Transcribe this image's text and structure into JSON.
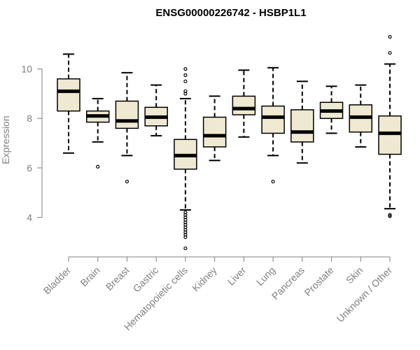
{
  "chart_data": {
    "type": "boxplot",
    "title": "ENSG00000226742 - HSBP1L1",
    "ylabel": "Expression",
    "xlabel": "",
    "ylim": [
      2.6,
      11.6
    ],
    "yticks": [
      4,
      6,
      8,
      10
    ],
    "box_fill": "#efe9d2",
    "categories": [
      "Bladder",
      "Brain",
      "Breast",
      "Gastric",
      "Hematopoietic cells",
      "Kidney",
      "Liver",
      "Lung",
      "Pancreas",
      "Prostate",
      "Skin",
      "Unknown / Other"
    ],
    "boxes": [
      {
        "whisker_low": 6.6,
        "q1": 8.3,
        "median": 9.1,
        "q3": 9.6,
        "whisker_high": 10.6,
        "outliers": []
      },
      {
        "whisker_low": 7.05,
        "q1": 7.85,
        "median": 8.1,
        "q3": 8.3,
        "whisker_high": 8.8,
        "outliers": [
          6.05
        ]
      },
      {
        "whisker_low": 6.5,
        "q1": 7.6,
        "median": 7.9,
        "q3": 8.7,
        "whisker_high": 9.85,
        "outliers": [
          5.45
        ]
      },
      {
        "whisker_low": 7.3,
        "q1": 7.7,
        "median": 8.05,
        "q3": 8.45,
        "whisker_high": 9.35,
        "outliers": []
      },
      {
        "whisker_low": 4.3,
        "q1": 5.95,
        "median": 6.5,
        "q3": 7.15,
        "whisker_high": 8.8,
        "outliers": [
          2.75,
          3.2,
          3.3,
          3.4,
          3.5,
          3.6,
          3.7,
          3.8,
          3.9,
          4.0,
          4.1,
          4.2,
          9.0,
          9.1,
          9.5,
          9.75,
          10.0
        ]
      },
      {
        "whisker_low": 6.3,
        "q1": 6.85,
        "median": 7.3,
        "q3": 8.05,
        "whisker_high": 8.9,
        "outliers": []
      },
      {
        "whisker_low": 7.25,
        "q1": 8.15,
        "median": 8.4,
        "q3": 8.9,
        "whisker_high": 9.95,
        "outliers": []
      },
      {
        "whisker_low": 6.5,
        "q1": 7.4,
        "median": 8.05,
        "q3": 8.5,
        "whisker_high": 10.05,
        "outliers": [
          5.45
        ]
      },
      {
        "whisker_low": 6.2,
        "q1": 7.05,
        "median": 7.45,
        "q3": 8.35,
        "whisker_high": 9.5,
        "outliers": []
      },
      {
        "whisker_low": 7.4,
        "q1": 8.0,
        "median": 8.3,
        "q3": 8.65,
        "whisker_high": 9.3,
        "outliers": []
      },
      {
        "whisker_low": 6.85,
        "q1": 7.45,
        "median": 8.05,
        "q3": 8.55,
        "whisker_high": 9.35,
        "outliers": []
      },
      {
        "whisker_low": 4.35,
        "q1": 6.55,
        "median": 7.4,
        "q3": 8.1,
        "whisker_high": 10.2,
        "outliers": [
          4.05,
          4.1,
          10.65,
          11.3
        ]
      }
    ]
  }
}
